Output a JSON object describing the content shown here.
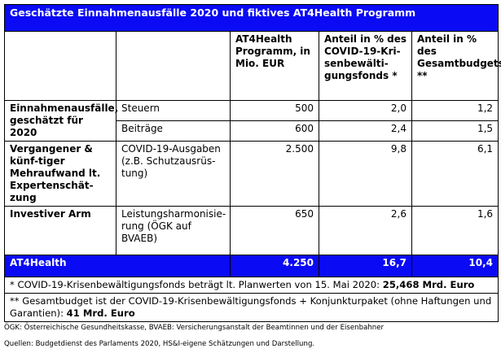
{
  "title": "Geschätzte Einnahmenausfälle 2020 und fiktives AT4Health Programm",
  "headers": {
    "col3": "AT4Health Programm, in Mio. EUR",
    "col4": "Anteil in % des COVID-19-Kri-senbewälti-gungsfonds *",
    "col5": "Anteil in % des Gesamtbudgets **"
  },
  "rows": {
    "einnahmen": {
      "label": "Einnahmenausfälle, geschätzt für 2020",
      "steuern": {
        "sub": "Steuern",
        "mio": "500",
        "fonds": "2,0",
        "budget": "1,2"
      },
      "beitraege": {
        "sub": "Beiträge",
        "mio": "600",
        "fonds": "2,4",
        "budget": "1,5"
      }
    },
    "vergangen": {
      "label": "Vergangener & künf-tiger Mehraufwand lt. Expertenschät-zung",
      "sub": "COVID-19-Ausgaben (z.B. Schutzausrüs-tung)",
      "mio": "2.500",
      "fonds": "9,8",
      "budget": "6,1"
    },
    "investiv": {
      "label": "Investiver Arm",
      "sub": "Leistungsharmonisie-rung (ÖGK auf BVAEB)",
      "mio": "650",
      "fonds": "2,6",
      "budget": "1,6"
    }
  },
  "total": {
    "label": "AT4Health",
    "mio": "4.250",
    "fonds": "16,7",
    "budget": "10,4"
  },
  "notes": {
    "note1_text": "* COVID-19-Krisenbewältigungsfonds beträgt lt. Planwerten von 15. Mai 2020: ",
    "note1_bold": "25,468 Mrd. Euro",
    "note2_text": "** Gesamtbudget ist der COVID-19-Krisenbewältigungsfonds + Konjunkturpaket (ohne Haftungen und Garantien): ",
    "note2_bold": "41 Mrd. Euro"
  },
  "footer": {
    "abbrev": "ÖGK: Österreichische Gesundheitskasse, BVAEB: Versicherungsanstalt der Beamtinnen und der Eisenbahner",
    "sources": "Quellen: Budgetdienst des Parlaments 2020, HS&I-eigene Schätzungen und Darstellung."
  },
  "colors": {
    "accent": "#0a0af5"
  }
}
